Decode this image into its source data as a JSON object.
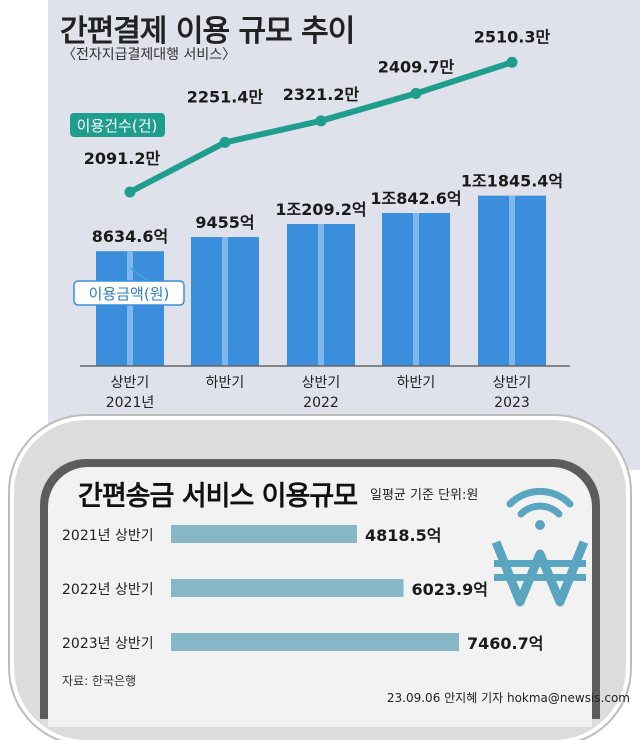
{
  "title": "간편결제 이용 규모 추이",
  "subtitle": "〈전자지급결제대행 서비스〉",
  "top_chart": {
    "legend_count": "이용건수(건)",
    "legend_amount": "이용금액(원)",
    "periods": [
      {
        "half": "상반기",
        "year": "2021년"
      },
      {
        "half": "하반기",
        "year": ""
      },
      {
        "half": "상반기",
        "year": "2022"
      },
      {
        "half": "하반기",
        "year": ""
      },
      {
        "half": "상반기",
        "year": "2023"
      }
    ],
    "amount_labels": [
      "8634.6억",
      "9455억",
      "1조209.2억",
      "1조842.6억",
      "1조1845.4억"
    ],
    "count_labels": [
      "2091.2만",
      "2251.4만",
      "2321.2만",
      "2409.7만",
      "2510.3만"
    ]
  },
  "bottom": {
    "title": "간편송금 서비스 이용규모",
    "unit_note": "일평균 기준 단위:원",
    "source": "자료: 한국은행"
  },
  "credit": "23.09.06 안지혜 기자 hokma@newsis.com",
  "colors": {
    "bar": "#3a8edb",
    "bar_stripe": "#7fb7ec",
    "line": "#1f9e8e",
    "hbar": "#86b7c6",
    "icon": "#5aa5c0",
    "panel": "#dfe2ea"
  },
  "chart_data": [
    {
      "type": "bar",
      "title": "간편결제 이용 규모 추이",
      "categories": [
        "상반기 2021년",
        "하반기",
        "상반기 2022",
        "하반기",
        "상반기 2023"
      ],
      "series": [
        {
          "name": "이용금액(원)",
          "unit": "억",
          "values": [
            8634.6,
            9455,
            10209.2,
            10842.6,
            11845.4
          ]
        },
        {
          "name": "이용건수(건)",
          "unit": "만",
          "type": "line",
          "values": [
            2091.2,
            2251.4,
            2321.2,
            2409.7,
            2510.3
          ]
        }
      ]
    },
    {
      "type": "bar",
      "orientation": "horizontal",
      "title": "간편송금 서비스 이용규모",
      "categories": [
        "2021년 상반기",
        "2022년 상반기",
        "2023년 상반기"
      ],
      "series": [
        {
          "name": "",
          "unit": "억",
          "values": [
            4818.5,
            6023.9,
            7460.7
          ]
        }
      ],
      "value_labels": [
        "4818.5억",
        "6023.9억",
        "7460.7억"
      ]
    }
  ]
}
